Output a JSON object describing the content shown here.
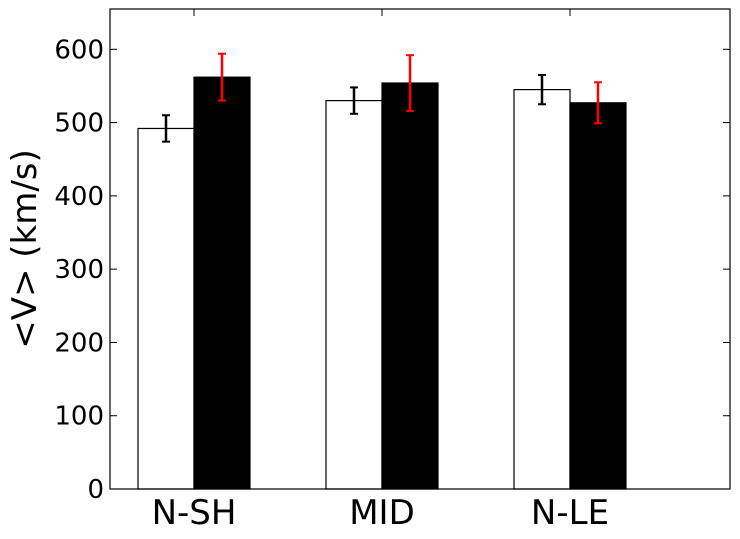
{
  "chart_data": {
    "type": "bar",
    "categories": [
      "N-SH",
      "MID",
      "N-LE"
    ],
    "series": [
      {
        "fill": "#ffffff",
        "errorbar_color": "#000000",
        "values": [
          492,
          530,
          545
        ],
        "errors": [
          18,
          18,
          20
        ]
      },
      {
        "fill": "#000000",
        "errorbar_color": "#ff0000",
        "values": [
          562,
          554,
          527
        ],
        "errors": [
          32,
          38,
          28
        ]
      }
    ],
    "xlabel": "",
    "ylabel": "<V> (km/s)",
    "ylim": [
      0,
      655
    ],
    "yticks": [
      0,
      100,
      200,
      300,
      400,
      500,
      600
    ],
    "grid": false,
    "legend": "none"
  }
}
